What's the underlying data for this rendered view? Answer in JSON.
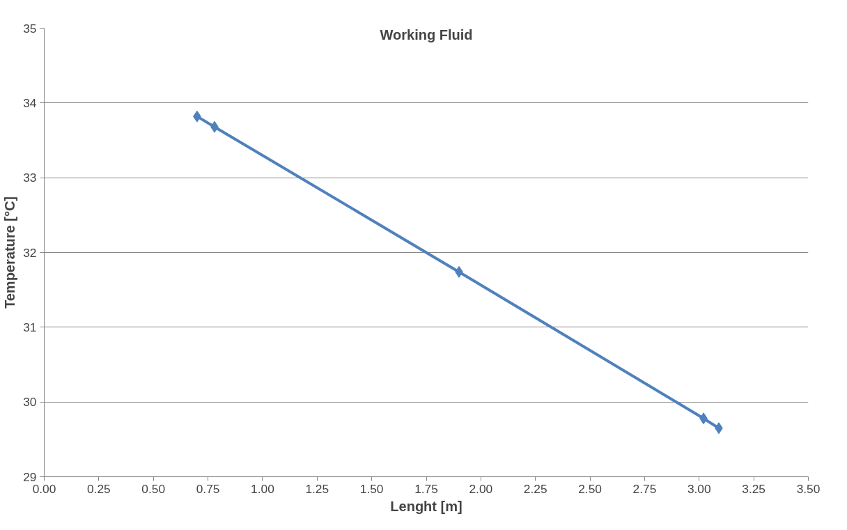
{
  "chart_data": {
    "type": "line",
    "title": "Working Fluid",
    "xlabel": "Lenght [m]",
    "ylabel": "Temperature [°C]",
    "x": [
      0.7,
      0.78,
      1.9,
      3.02,
      3.09
    ],
    "series": [
      {
        "color": "#4f81bd",
        "values": [
          33.82,
          33.68,
          31.74,
          29.78,
          29.65
        ]
      }
    ],
    "xlim": [
      0,
      3.5
    ],
    "xticks": [
      {
        "value": 0,
        "label": "0.00"
      },
      {
        "value": 0.25,
        "label": "0.25"
      },
      {
        "value": 0.5,
        "label": "0.50"
      },
      {
        "value": 0.75,
        "label": "0.75"
      },
      {
        "value": 1,
        "label": "1.00"
      },
      {
        "value": 1.25,
        "label": "1.25"
      },
      {
        "value": 1.5,
        "label": "1.50"
      },
      {
        "value": 1.75,
        "label": "1.75"
      },
      {
        "value": 2,
        "label": "2.00"
      },
      {
        "value": 2.25,
        "label": "2.25"
      },
      {
        "value": 2.5,
        "label": "2.50"
      },
      {
        "value": 2.75,
        "label": "2.75"
      },
      {
        "value": 3,
        "label": "3.00"
      },
      {
        "value": 3.25,
        "label": "3.25"
      },
      {
        "value": 3.5,
        "label": "3.50"
      }
    ],
    "ylim": [
      29,
      35
    ],
    "yticks": [
      29,
      30,
      31,
      32,
      33,
      34,
      35
    ],
    "grid": "y",
    "marker": "diamond",
    "line_style": "solid"
  }
}
